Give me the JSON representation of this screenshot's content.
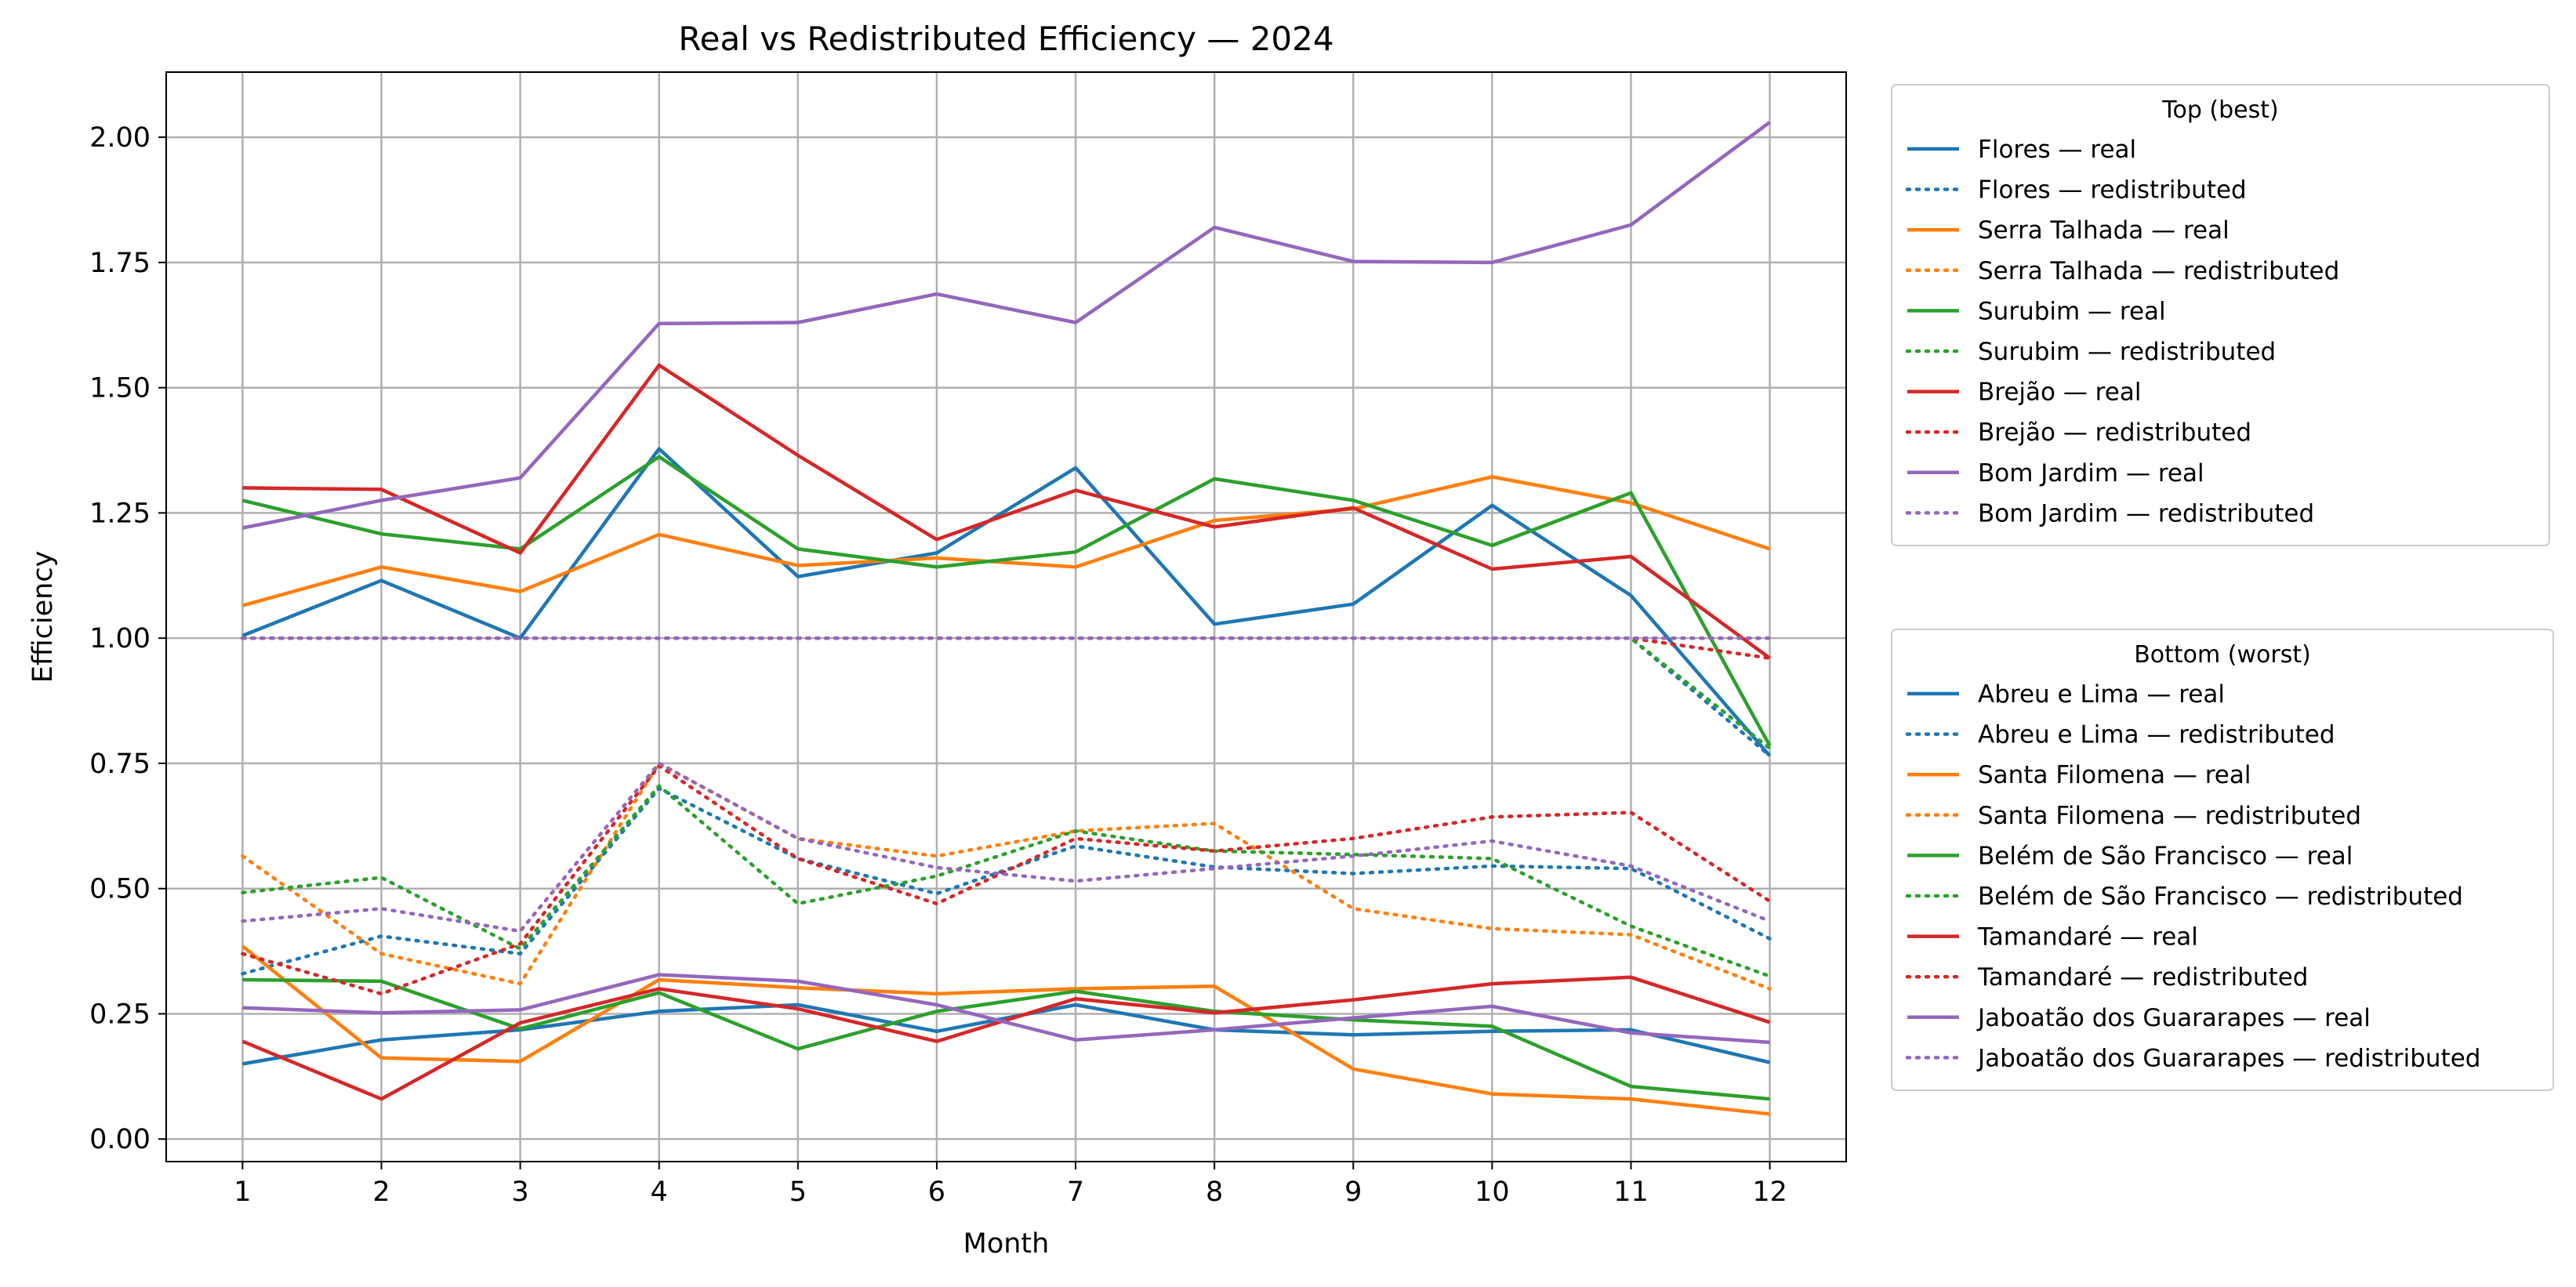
{
  "chart_data": {
    "type": "line",
    "title": "Real vs Redistributed Efficiency — 2024",
    "xlabel": "Month",
    "ylabel": "Efficiency",
    "x": [
      1,
      2,
      3,
      4,
      5,
      6,
      7,
      8,
      9,
      10,
      11,
      12
    ],
    "xlim": [
      0.45,
      12.55
    ],
    "ylim": [
      -0.045,
      2.13
    ],
    "yticks": [
      0.0,
      0.25,
      0.5,
      0.75,
      1.0,
      1.25,
      1.5,
      1.75,
      2.0
    ],
    "ytick_labels": [
      "0.00",
      "0.25",
      "0.50",
      "0.75",
      "1.00",
      "1.25",
      "1.50",
      "1.75",
      "2.00"
    ],
    "xtick_labels": [
      "1",
      "2",
      "3",
      "4",
      "5",
      "6",
      "7",
      "8",
      "9",
      "10",
      "11",
      "12"
    ],
    "grid": true,
    "legends": [
      {
        "title": "Top (best)",
        "placement": "outside-right-upper",
        "series": [
          {
            "name": "Flores — real",
            "color": "#1f77b4",
            "style": "solid",
            "values": [
              1.005,
              1.115,
              1.0,
              1.378,
              1.123,
              1.17,
              1.34,
              1.028,
              1.068,
              1.265,
              1.085,
              0.765
            ]
          },
          {
            "name": "Flores — redistributed",
            "color": "#1f77b4",
            "style": "dotted",
            "values": [
              1.0,
              1.0,
              1.0,
              1.0,
              1.0,
              1.0,
              1.0,
              1.0,
              1.0,
              1.0,
              1.0,
              0.765
            ]
          },
          {
            "name": "Serra Talhada — real",
            "color": "#ff7f0e",
            "style": "solid",
            "values": [
              1.065,
              1.142,
              1.093,
              1.207,
              1.145,
              1.16,
              1.142,
              1.235,
              1.258,
              1.322,
              1.27,
              1.178
            ]
          },
          {
            "name": "Serra Talhada — redistributed",
            "color": "#ff7f0e",
            "style": "dotted",
            "values": [
              1.0,
              1.0,
              1.0,
              1.0,
              1.0,
              1.0,
              1.0,
              1.0,
              1.0,
              1.0,
              1.0,
              1.0
            ]
          },
          {
            "name": "Surubim — real",
            "color": "#2ca02c",
            "style": "solid",
            "values": [
              1.275,
              1.208,
              1.178,
              1.362,
              1.178,
              1.142,
              1.172,
              1.318,
              1.275,
              1.185,
              1.29,
              0.785
            ]
          },
          {
            "name": "Surubim — redistributed",
            "color": "#2ca02c",
            "style": "dotted",
            "values": [
              1.0,
              1.0,
              1.0,
              1.0,
              1.0,
              1.0,
              1.0,
              1.0,
              1.0,
              1.0,
              1.0,
              0.78
            ]
          },
          {
            "name": "Brejão — real",
            "color": "#d62728",
            "style": "solid",
            "values": [
              1.3,
              1.297,
              1.17,
              1.545,
              1.365,
              1.197,
              1.295,
              1.222,
              1.26,
              1.138,
              1.163,
              0.96
            ]
          },
          {
            "name": "Brejão — redistributed",
            "color": "#d62728",
            "style": "dotted",
            "values": [
              1.0,
              1.0,
              1.0,
              1.0,
              1.0,
              1.0,
              1.0,
              1.0,
              1.0,
              1.0,
              1.0,
              0.96
            ]
          },
          {
            "name": "Bom Jardim — real",
            "color": "#9467bd",
            "style": "solid",
            "values": [
              1.22,
              1.275,
              1.32,
              1.628,
              1.63,
              1.687,
              1.63,
              1.82,
              1.752,
              1.75,
              1.825,
              2.03
            ]
          },
          {
            "name": "Bom Jardim — redistributed",
            "color": "#9467bd",
            "style": "dotted",
            "values": [
              1.0,
              1.0,
              1.0,
              1.0,
              1.0,
              1.0,
              1.0,
              1.0,
              1.0,
              1.0,
              1.0,
              1.0
            ]
          }
        ]
      },
      {
        "title": "Bottom (worst)",
        "placement": "outside-right-lower",
        "series": [
          {
            "name": "Abreu e Lima — real",
            "color": "#1f77b4",
            "style": "solid",
            "values": [
              0.15,
              0.198,
              0.218,
              0.255,
              0.268,
              0.215,
              0.268,
              0.218,
              0.208,
              0.215,
              0.218,
              0.153
            ]
          },
          {
            "name": "Abreu e Lima — redistributed",
            "color": "#1f77b4",
            "style": "dotted",
            "values": [
              0.33,
              0.405,
              0.37,
              0.7,
              0.56,
              0.49,
              0.585,
              0.543,
              0.53,
              0.545,
              0.54,
              0.4
            ]
          },
          {
            "name": "Santa Filomena — real",
            "color": "#ff7f0e",
            "style": "solid",
            "values": [
              0.385,
              0.162,
              0.155,
              0.318,
              0.302,
              0.29,
              0.3,
              0.305,
              0.14,
              0.09,
              0.08,
              0.05
            ]
          },
          {
            "name": "Santa Filomena — redistributed",
            "color": "#ff7f0e",
            "style": "dotted",
            "values": [
              0.565,
              0.37,
              0.31,
              0.75,
              0.6,
              0.565,
              0.615,
              0.63,
              0.46,
              0.42,
              0.408,
              0.3
            ]
          },
          {
            "name": "Belém de São Francisco — real",
            "color": "#2ca02c",
            "style": "solid",
            "values": [
              0.318,
              0.315,
              0.22,
              0.292,
              0.18,
              0.255,
              0.295,
              0.255,
              0.238,
              0.225,
              0.105,
              0.08
            ]
          },
          {
            "name": "Belém de São Francisco — redistributed",
            "color": "#2ca02c",
            "style": "dotted",
            "values": [
              0.492,
              0.522,
              0.38,
              0.705,
              0.47,
              0.525,
              0.615,
              0.575,
              0.568,
              0.56,
              0.425,
              0.325
            ]
          },
          {
            "name": "Tamandaré — real",
            "color": "#d62728",
            "style": "solid",
            "values": [
              0.195,
              0.08,
              0.232,
              0.3,
              0.26,
              0.195,
              0.28,
              0.252,
              0.278,
              0.31,
              0.323,
              0.233
            ]
          },
          {
            "name": "Tamandaré — redistributed",
            "color": "#d62728",
            "style": "dotted",
            "values": [
              0.37,
              0.29,
              0.39,
              0.745,
              0.56,
              0.47,
              0.6,
              0.575,
              0.6,
              0.643,
              0.652,
              0.475
            ]
          },
          {
            "name": "Jaboatão dos Guararapes — real",
            "color": "#9467bd",
            "style": "solid",
            "values": [
              0.262,
              0.252,
              0.258,
              0.328,
              0.315,
              0.268,
              0.198,
              0.218,
              0.242,
              0.265,
              0.212,
              0.193
            ]
          },
          {
            "name": "Jaboatão dos Guararapes — redistributed",
            "color": "#9467bd",
            "style": "dotted",
            "values": [
              0.435,
              0.46,
              0.415,
              0.75,
              0.6,
              0.542,
              0.515,
              0.54,
              0.565,
              0.595,
              0.545,
              0.435
            ]
          }
        ]
      }
    ]
  }
}
